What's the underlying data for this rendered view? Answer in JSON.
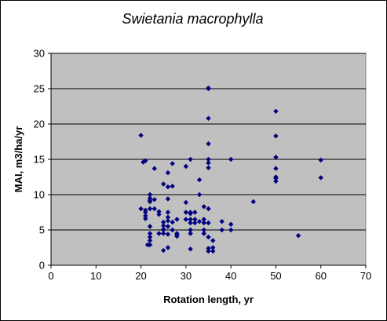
{
  "chart_data": {
    "type": "scatter",
    "title": "Swietania macrophylla",
    "xlabel": "Rotation length, yr",
    "ylabel": "MAI, m3/ha/yr",
    "xlim": [
      0,
      70
    ],
    "ylim": [
      0,
      30
    ],
    "xticks": [
      "0",
      "10",
      "20",
      "30",
      "40",
      "50",
      "60",
      "70"
    ],
    "yticks": [
      "0",
      "5",
      "10",
      "15",
      "20",
      "25",
      "30"
    ],
    "grid": "horizontal",
    "plot_background": "#c0c0c0",
    "marker_color": "#000080",
    "marker": "diamond",
    "x": [
      20,
      20,
      20.5,
      21,
      21,
      21,
      21,
      21,
      21.5,
      21.5,
      22,
      22,
      22,
      22,
      22,
      22,
      22,
      22,
      22,
      22,
      23,
      23,
      23,
      24,
      24,
      24,
      25,
      25,
      25,
      25,
      25,
      25,
      25,
      26,
      26,
      26,
      26,
      26,
      26,
      26,
      26,
      26,
      27,
      27,
      27,
      27,
      28,
      28,
      28,
      28,
      30,
      30,
      30,
      30,
      31,
      31,
      31,
      31,
      31,
      31,
      31,
      31,
      32,
      32,
      32,
      33,
      33,
      33,
      34,
      34,
      34,
      34,
      34,
      35,
      35,
      35,
      35,
      35,
      35,
      35,
      35,
      35,
      35,
      35,
      35,
      36,
      36,
      36,
      38,
      38,
      40,
      40,
      40,
      45,
      50,
      50,
      50,
      50,
      50,
      50,
      50,
      55,
      60,
      60
    ],
    "y": [
      18.4,
      8,
      14.6,
      14.8,
      7.8,
      7.5,
      7,
      6.6,
      2.9,
      2.9,
      10,
      9.5,
      9.2,
      9,
      8,
      5.5,
      4.5,
      4,
      3.5,
      2.9,
      13.7,
      9.3,
      8,
      7.6,
      7.2,
      4.5,
      11.5,
      6.1,
      5.6,
      5.1,
      5,
      4.5,
      2.1,
      13.1,
      11.1,
      9.4,
      7.5,
      6.8,
      6.3,
      5.5,
      4.4,
      2.5,
      14.4,
      11.2,
      6.1,
      5,
      6.5,
      4.5,
      4.3,
      4.1,
      14,
      8.9,
      7.5,
      6.5,
      15,
      7.5,
      7.3,
      6.5,
      6,
      5,
      4.5,
      2.3,
      7.5,
      6.5,
      6,
      12.1,
      10,
      6.2,
      8.3,
      6.5,
      6,
      5,
      4.5,
      25.1,
      25,
      20.8,
      17.2,
      15,
      14.5,
      13.8,
      8,
      6,
      4,
      2.4,
      2,
      3.5,
      2.5,
      2,
      6.2,
      5,
      15,
      5.8,
      5,
      9,
      21.8,
      18.3,
      15.3,
      13.7,
      12.5,
      12.3,
      11.9,
      4.2,
      14.9,
      12.4
    ]
  }
}
